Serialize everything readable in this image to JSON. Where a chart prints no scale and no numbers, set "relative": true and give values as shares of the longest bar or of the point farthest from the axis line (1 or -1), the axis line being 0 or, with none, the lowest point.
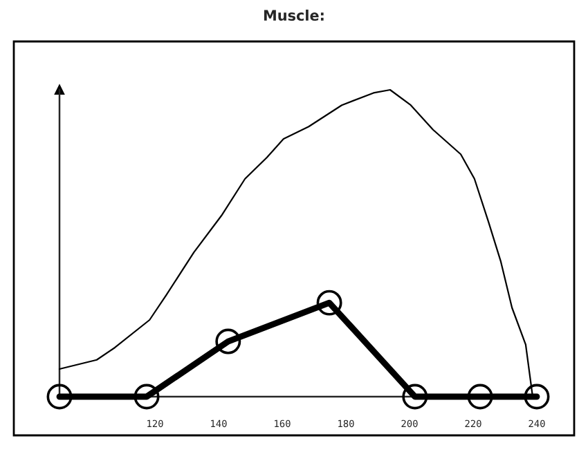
{
  "chart_data": {
    "type": "line",
    "title": "Muscle:",
    "relative": true,
    "xlim": [
      90,
      240
    ],
    "xticks": [
      120,
      140,
      160,
      180,
      200,
      220,
      240
    ],
    "series": [
      {
        "color": "#000000",
        "marker": "none",
        "x": [
          90,
          101.7,
          107.4,
          118.3,
          123.5,
          132.2,
          140.9,
          148.3,
          155.2,
          160.4,
          168.3,
          178.7,
          188.7,
          193.9,
          200.4,
          207.4,
          216.1,
          220.4,
          224.8,
          228.7,
          232.2,
          236.5,
          238.7
        ],
        "values": [
          0.09,
          0.12,
          0.16,
          0.25,
          0.33,
          0.47,
          0.59,
          0.71,
          0.78,
          0.84,
          0.88,
          0.95,
          0.99,
          1.0,
          0.95,
          0.87,
          0.79,
          0.71,
          0.57,
          0.44,
          0.29,
          0.17,
          0
        ]
      },
      {
        "color": "#000000",
        "marker": "circle",
        "x": [
          90,
          117.4,
          143.0,
          174.8,
          201.7,
          222.2,
          240
        ],
        "values": [
          0,
          0,
          0.18,
          0.306,
          0,
          0,
          0
        ]
      }
    ]
  }
}
